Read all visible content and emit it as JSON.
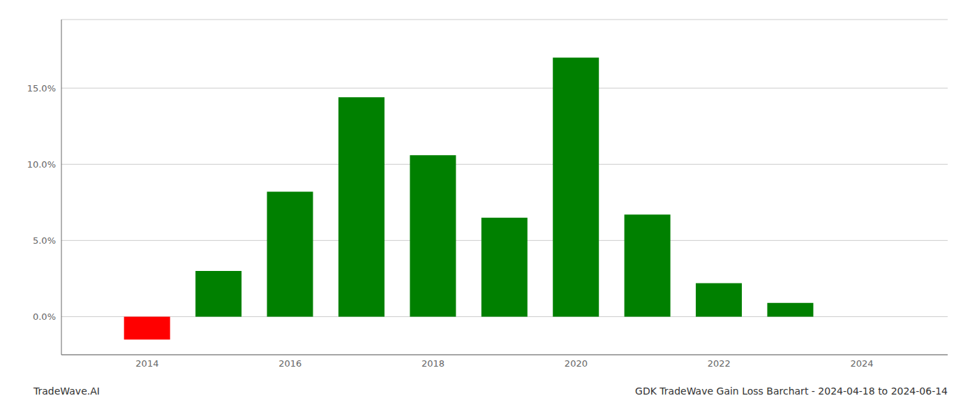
{
  "chart_data": {
    "type": "bar",
    "x": [
      2014,
      2015,
      2016,
      2017,
      2018,
      2019,
      2020,
      2021,
      2022,
      2023
    ],
    "values": [
      -1.5,
      3.0,
      8.2,
      14.4,
      10.6,
      6.5,
      17.0,
      6.7,
      2.2,
      0.9
    ],
    "colors": [
      "#ff0000",
      "#008000",
      "#008000",
      "#008000",
      "#008000",
      "#008000",
      "#008000",
      "#008000",
      "#008000",
      "#008000"
    ],
    "xlim": [
      2012.8,
      2025.2
    ],
    "xticks": [
      2014,
      2016,
      2018,
      2020,
      2022,
      2024
    ],
    "ylim": [
      -2.5,
      19.5
    ],
    "yticks": [
      {
        "value": 0.0,
        "label": "0.0%"
      },
      {
        "value": 5.0,
        "label": "5.0%"
      },
      {
        "value": 10.0,
        "label": "10.0%"
      },
      {
        "value": 15.0,
        "label": "15.0%"
      }
    ],
    "grid": true,
    "annotations": [
      "TradeWave.AI",
      "GDK TradeWave Gain Loss Barchart - 2024-04-18 to 2024-06-14"
    ]
  }
}
